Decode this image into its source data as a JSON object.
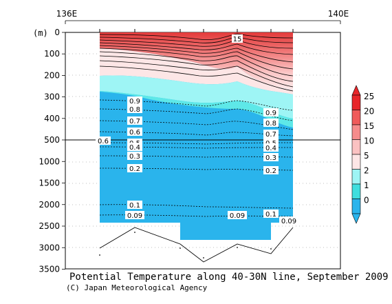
{
  "chart_data": {
    "type": "heatmap",
    "title": "Potential Temperature along 40-30N line, September 2009",
    "credit": "(C) Japan Meteorological Agency",
    "xlabel_left": "136E",
    "xlabel_right": "140E",
    "ylabel": "(m)",
    "y_ticks_upper": [
      0,
      100,
      200,
      300,
      400,
      500
    ],
    "y_ticks_lower": [
      1000,
      1500,
      2000,
      2500,
      3000,
      3500
    ],
    "colorbar": {
      "ticks": [
        "25",
        "20",
        "15",
        "10",
        "5",
        "2",
        "1",
        "0"
      ],
      "colors": [
        "#e8262a",
        "#f05a5a",
        "#f68c8c",
        "#fbc2c2",
        "#fde6e6",
        "#9ef5f5",
        "#3fdede",
        "#2ab4ec"
      ]
    },
    "contour_labels": [
      "15",
      "0.9",
      "0.8",
      "0.7",
      "0.6",
      "0.5",
      "0.4",
      "0.3",
      "0.2",
      "0.1",
      "0.09",
      "0.9",
      "0.8",
      "0.7",
      "0.6",
      "0.5",
      "0.4",
      "0.3",
      "0.2",
      "0.1",
      "0.09",
      "0.09",
      "0.6"
    ]
  }
}
